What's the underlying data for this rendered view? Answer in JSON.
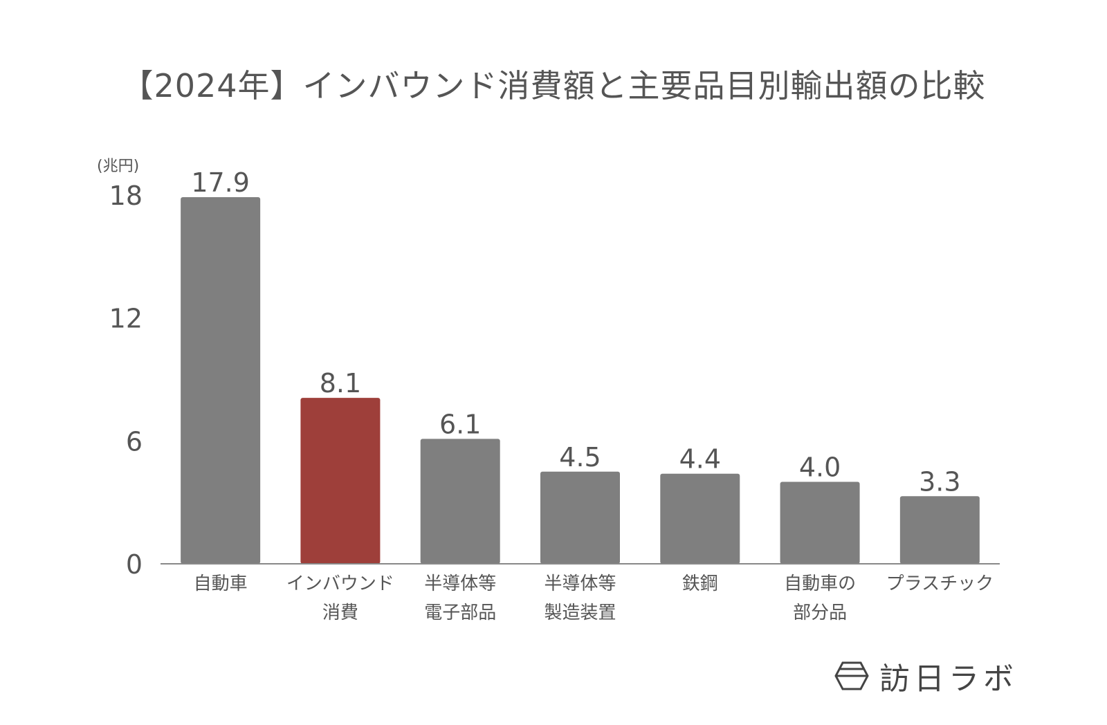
{
  "chart_data": {
    "type": "bar",
    "title": "【2024年】インバウンド消費額と主要品目別輸出額の比較",
    "ylabel": "(兆円)",
    "categories": [
      [
        "自動車"
      ],
      [
        "インバウンド",
        "消費"
      ],
      [
        "半導体等",
        "電子部品"
      ],
      [
        "半導体等",
        "製造装置"
      ],
      [
        "鉄鋼"
      ],
      [
        "自動車の",
        "部分品"
      ],
      [
        "プラスチック"
      ]
    ],
    "values": [
      17.9,
      8.1,
      6.1,
      4.5,
      4.4,
      4.0,
      3.3
    ],
    "value_labels": [
      "17.9",
      "8.1",
      "6.1",
      "4.5",
      "4.4",
      "4.0",
      "3.3"
    ],
    "highlight_index": 1,
    "yticks": [
      "0",
      "6",
      "12",
      "18"
    ],
    "ylim": [
      0,
      18
    ],
    "grid": false,
    "colors": {
      "default": "#7f7f7f",
      "highlight": "#9e3f3a",
      "axis": "#888888",
      "text": "#555555"
    }
  },
  "logo": {
    "text": "訪日ラボ",
    "icon": "hexagon-logo-icon"
  }
}
